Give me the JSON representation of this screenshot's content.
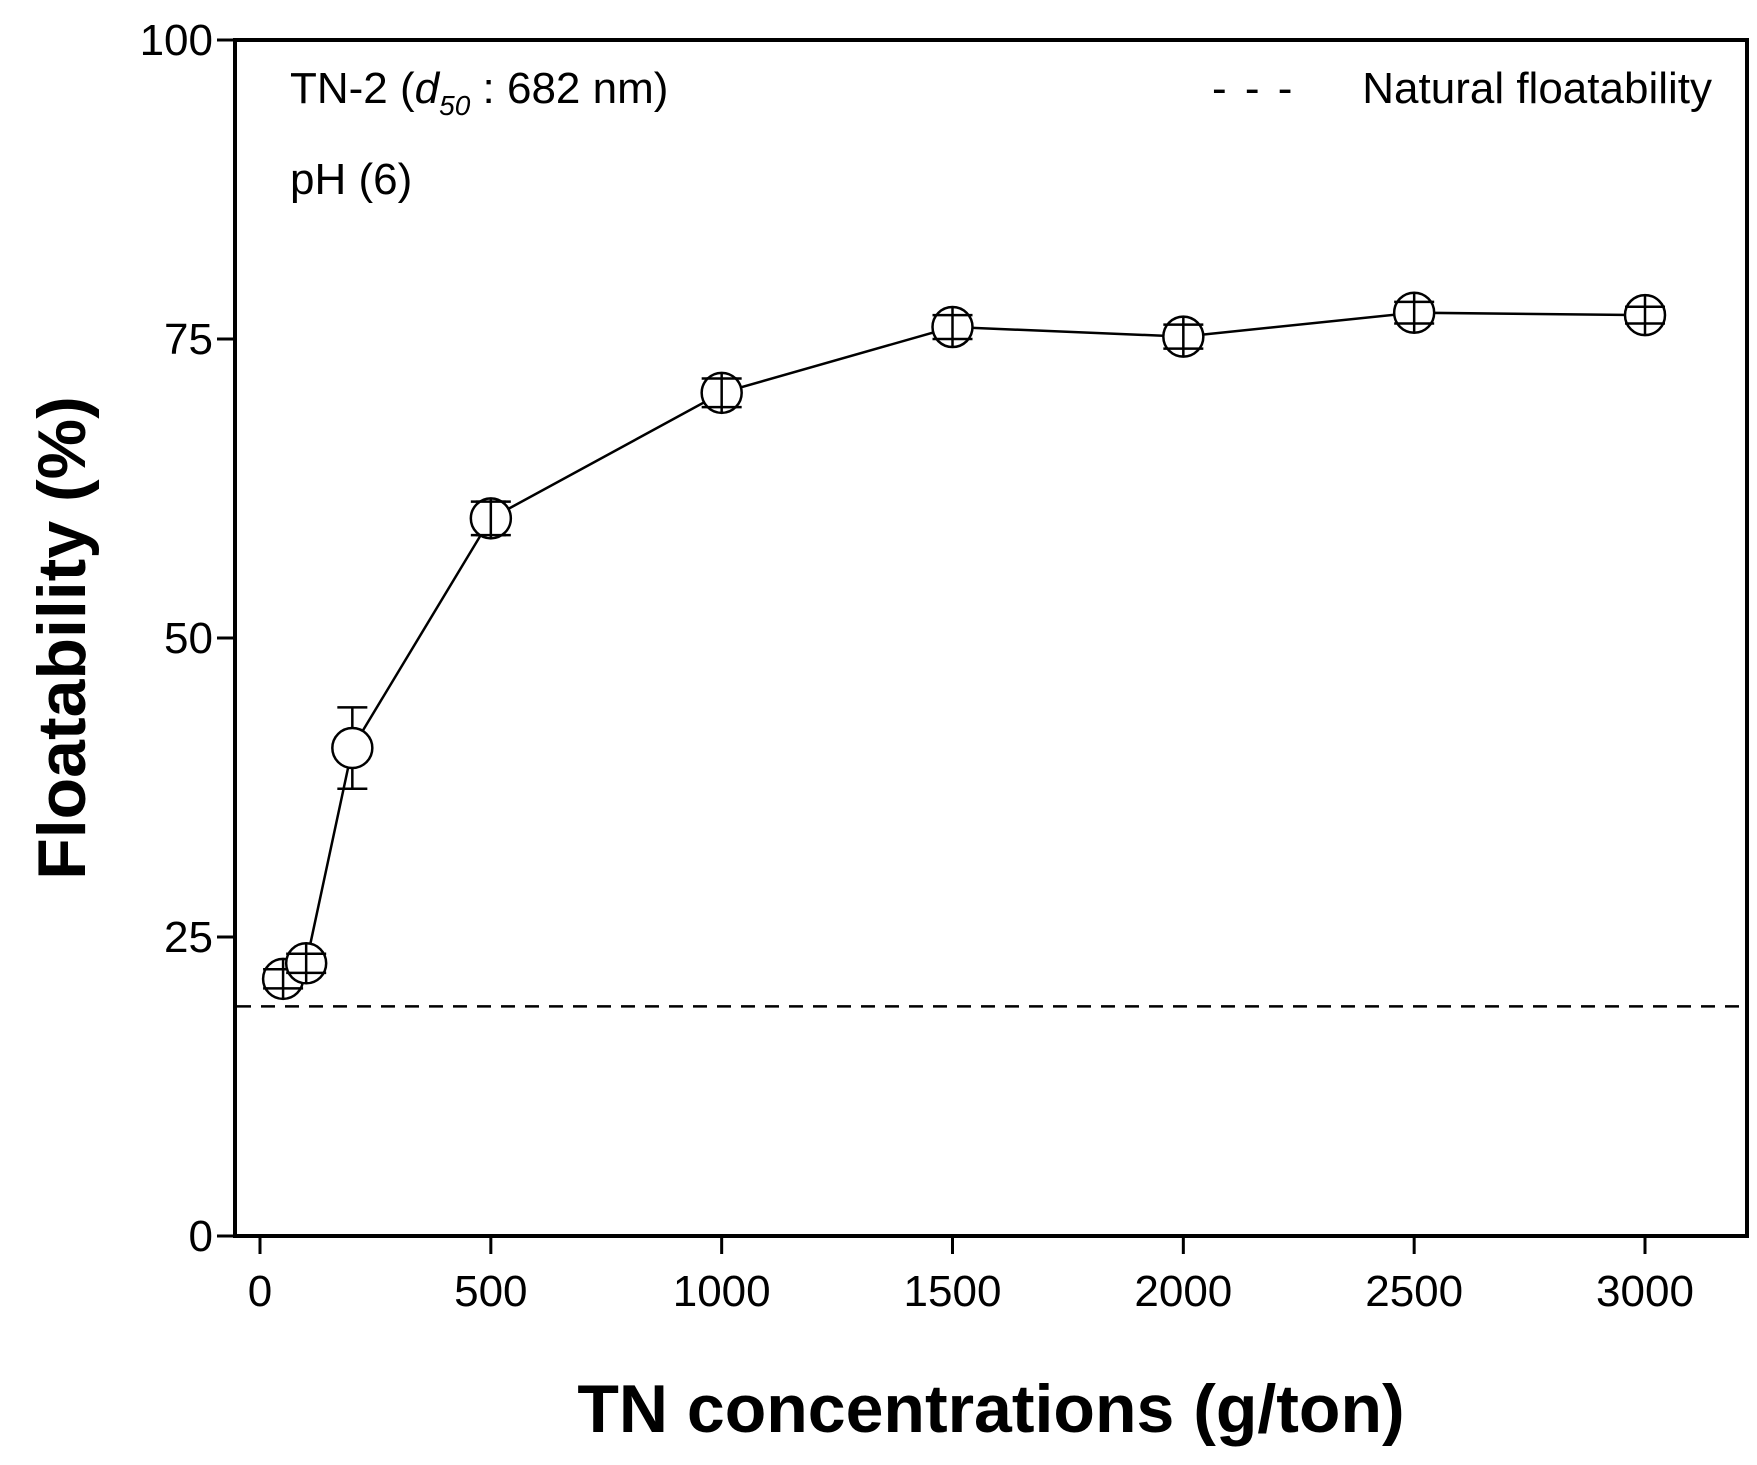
{
  "chart_data": {
    "type": "line",
    "title": "",
    "xlabel": "TN concentrations (g/ton)",
    "ylabel": "Floatability (%)",
    "xlim": [
      0,
      3200
    ],
    "ylim": [
      0,
      100
    ],
    "x_ticks": [
      0,
      500,
      1000,
      1500,
      2000,
      2500,
      3000
    ],
    "y_ticks": [
      0,
      25,
      50,
      75,
      100
    ],
    "grid": false,
    "series": [
      {
        "name": "TN-2 floatability",
        "x": [
          50,
          100,
          200,
          500,
          1000,
          1500,
          2000,
          2500,
          3000
        ],
        "y": [
          21.5,
          22.8,
          40.8,
          60.0,
          70.5,
          76.0,
          75.2,
          77.2,
          77.0
        ],
        "error": [
          0.8,
          0.8,
          3.4,
          1.4,
          1.2,
          1.0,
          1.0,
          0.9,
          0.7
        ],
        "marker": "open-circle",
        "color": "#000000"
      }
    ],
    "reference_line": {
      "name": "Natural floatability",
      "y": 19.2,
      "style": "dashed",
      "color": "#000000"
    },
    "annotations": {
      "sample_prefix": "TN-2 (",
      "d_symbol": "d",
      "d_subscript": "50",
      "sample_suffix": " : 682 nm)",
      "ph": "pH (6)"
    },
    "legend": {
      "position": "top-right",
      "label": "Natural floatability",
      "dash_glyph": "- - -"
    }
  }
}
